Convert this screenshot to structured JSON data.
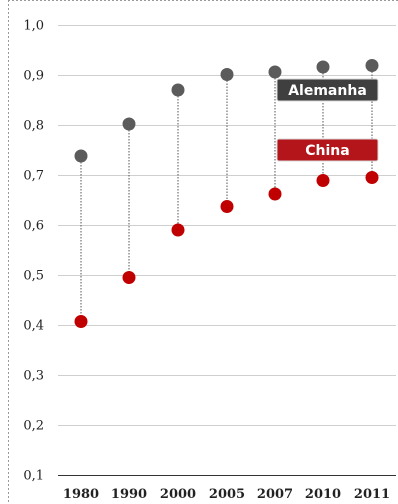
{
  "chart_data": {
    "type": "scatter",
    "title": "",
    "xlabel": "",
    "ylabel": "",
    "categories": [
      "1980",
      "1990",
      "2000",
      "2005",
      "2007",
      "2010",
      "2011"
    ],
    "ylim": [
      0.1,
      1.0
    ],
    "y_ticks": [
      "1,0",
      "0,9",
      "0,8",
      "0,7",
      "0,6",
      "0,5",
      "0,4",
      "0,3",
      "0,2",
      "0,1"
    ],
    "grid": true,
    "connectors": "dotted vertical lines between series per category",
    "legend_placement": "top-right",
    "series": [
      {
        "name": "Alemanha",
        "color": "#5b5b5b",
        "legend_color": "#3f3f3f",
        "values": [
          0.738,
          0.802,
          0.87,
          0.901,
          0.906,
          0.916,
          0.919
        ]
      },
      {
        "name": "China",
        "color": "#c00000",
        "legend_color": "#b3151a",
        "values": [
          0.407,
          0.495,
          0.59,
          0.637,
          0.662,
          0.689,
          0.695
        ]
      }
    ]
  }
}
